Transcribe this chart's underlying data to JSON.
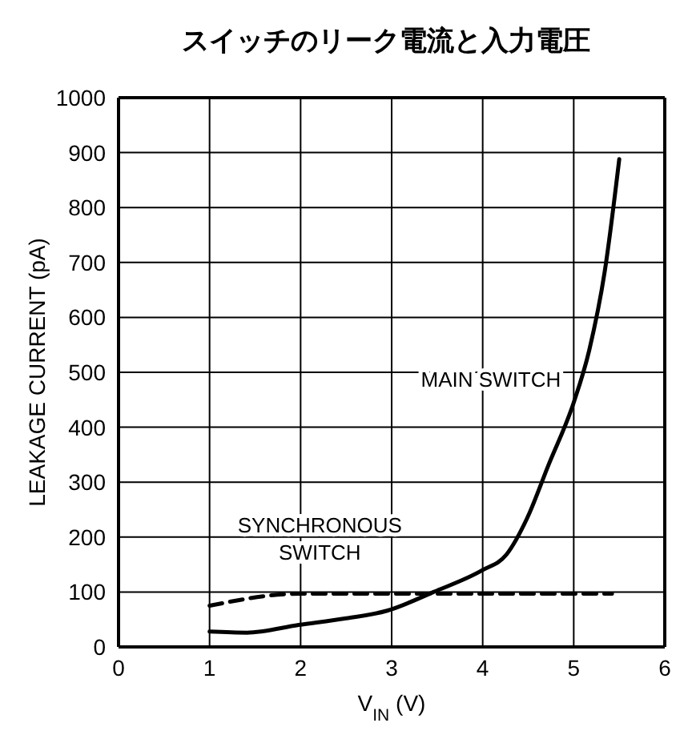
{
  "chart_data": {
    "type": "line",
    "title": "スイッチのリーク電流と入力電圧",
    "xlabel": "V$_{IN}$ (V)",
    "ylabel": "LEAKAGE CURRENT (pA)",
    "xlim": [
      0,
      6
    ],
    "xticks": [
      0,
      1,
      2,
      3,
      4,
      5,
      6
    ],
    "ylim": [
      0,
      1000
    ],
    "yticks": [
      0,
      100,
      200,
      300,
      400,
      500,
      600,
      700,
      800,
      900,
      1000
    ],
    "grid": true,
    "marker": "none",
    "series": [
      {
        "name": "MAIN SWITCH",
        "color": "#000000",
        "line_style": "solid",
        "x": [
          1,
          1.41,
          1.98,
          2.5,
          2.95,
          3.46,
          4.0,
          4.26,
          4.49,
          4.72,
          5.0,
          5.17,
          5.34,
          5.5
        ],
        "values": [
          28,
          26,
          40,
          52,
          66,
          100,
          140,
          168,
          235,
          330,
          445,
          540,
          683,
          888
        ]
      },
      {
        "name": "SYNCHRONOUS SWITCH",
        "color": "#000000",
        "line_style": "dashed",
        "x": [
          1,
          2,
          5.42
        ],
        "values": [
          75,
          97,
          97
        ]
      }
    ]
  }
}
